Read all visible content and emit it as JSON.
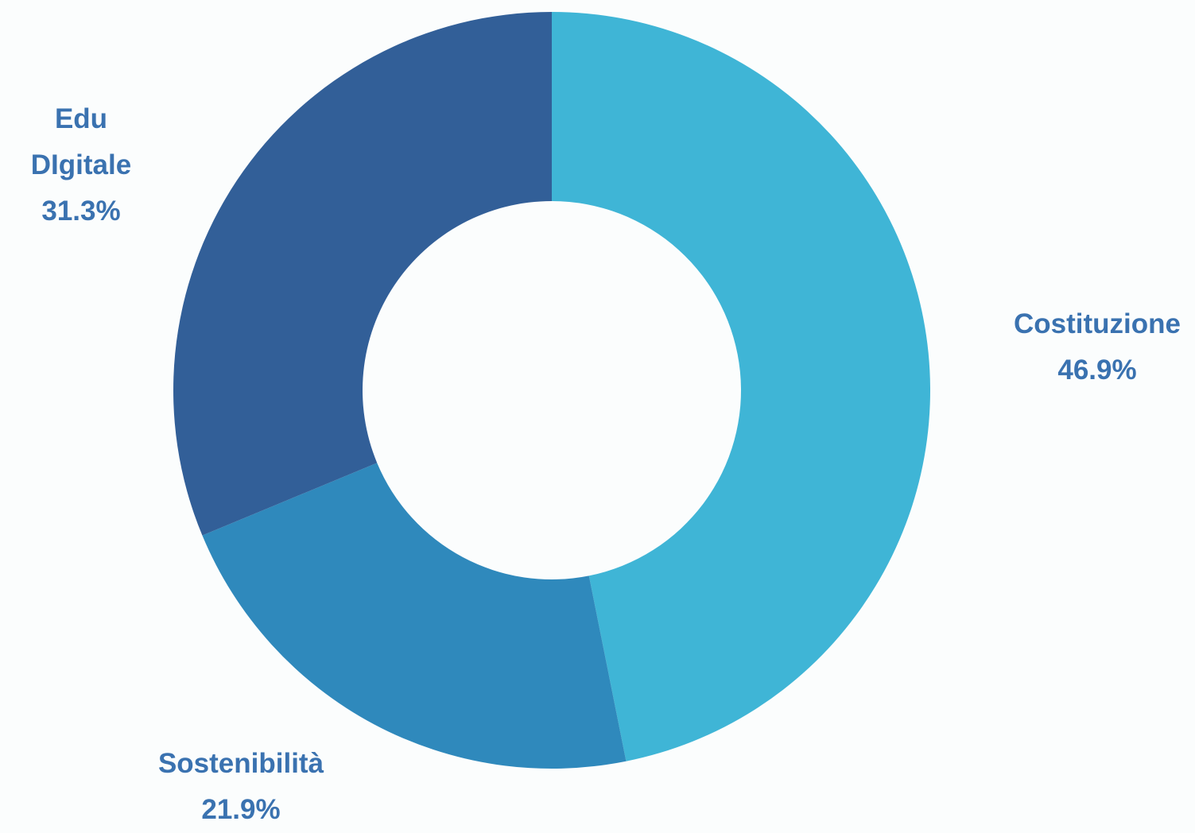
{
  "chart_data": {
    "type": "donut",
    "categories": [
      "Costituzione",
      "Sostenibilità",
      "Edu DIgitale"
    ],
    "values": [
      46.9,
      21.9,
      31.3
    ],
    "value_labels": [
      "46.9%",
      "21.9%",
      "31.3%"
    ],
    "colors": [
      "#3fb5d6",
      "#2f89bc",
      "#325f98"
    ]
  }
}
